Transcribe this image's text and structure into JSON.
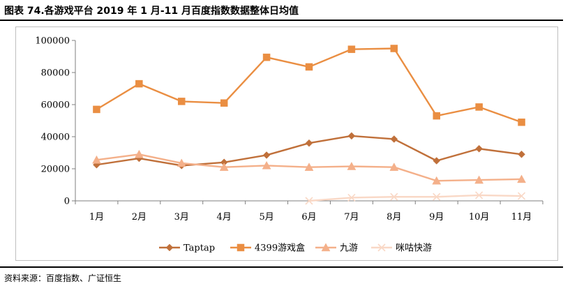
{
  "title": "图表 74.各游戏平台 2019 年 1 月-11 月百度指数数据整体日均值",
  "source": "资料来源：百度指数、广证恒生",
  "colors": {
    "Taptap": "#c0703a",
    "4399游戏盒": "#ea8e42",
    "九游": "#f4b08a",
    "咪咕快游": "#f9d8c6"
  },
  "chart_data": {
    "type": "line",
    "categories": [
      "1月",
      "2月",
      "3月",
      "4月",
      "5月",
      "6月",
      "7月",
      "8月",
      "9月",
      "10月",
      "11月"
    ],
    "ylim": [
      0,
      100000
    ],
    "yticks": [
      0,
      20000,
      40000,
      60000,
      80000,
      100000
    ],
    "ytick_labels": [
      "0",
      "20000",
      "40000",
      "60000",
      "80000",
      "100000"
    ],
    "grid": false,
    "legend_position": "bottom",
    "series": [
      {
        "name": "Taptap",
        "marker": "diamond",
        "values": [
          22500,
          26500,
          22000,
          24000,
          28500,
          36000,
          40500,
          38500,
          25000,
          32500,
          29000
        ]
      },
      {
        "name": "4399游戏盒",
        "marker": "square",
        "values": [
          57000,
          73000,
          62000,
          61000,
          89500,
          83500,
          94500,
          95000,
          53000,
          58500,
          49000
        ]
      },
      {
        "name": "九游",
        "marker": "triangle",
        "values": [
          25500,
          29000,
          23500,
          21000,
          22000,
          21000,
          21500,
          21000,
          12500,
          13000,
          13500
        ]
      },
      {
        "name": "咪咕快游",
        "marker": "x",
        "values": [
          null,
          null,
          null,
          null,
          null,
          0,
          2000,
          2500,
          2500,
          3500,
          3000
        ]
      }
    ]
  }
}
